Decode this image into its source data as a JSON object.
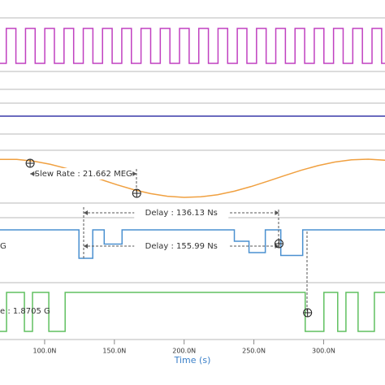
{
  "chart_data": {
    "type": "line",
    "xlabel": "Time (s)",
    "xlim": [
      68,
      344
    ],
    "xticks": [
      {
        "value": 100,
        "label": "100.0N"
      },
      {
        "value": 150,
        "label": "150.0N"
      },
      {
        "value": 200,
        "label": "200.0N"
      },
      {
        "value": 250,
        "label": "250.0N"
      },
      {
        "value": 300,
        "label": "300.0N"
      }
    ],
    "panels": [
      {
        "color": "#c040c0",
        "step": true,
        "ylim": [
          0,
          1
        ],
        "x": [
          68,
          72.5,
          79.4,
          86.3,
          93.2,
          100.1,
          107,
          113.9,
          120.8,
          127.7,
          134.6,
          141.5,
          148.4,
          155.3,
          162.2,
          169.1,
          176,
          182.9,
          189.8,
          196.7,
          203.6,
          210.5,
          217.4,
          224.3,
          231.2,
          238.1,
          245,
          251.9,
          258.8,
          265.7,
          272.6,
          279.5,
          286.4,
          293.3,
          300.2,
          307.1,
          314,
          320.9,
          327.8,
          334.7,
          341.6
        ],
        "values": [
          0,
          1,
          0,
          1,
          0,
          1,
          0,
          1,
          0,
          1,
          0,
          1,
          0,
          1,
          0,
          1,
          0,
          1,
          0,
          1,
          0,
          1,
          0,
          1,
          0,
          1,
          0,
          1,
          0,
          1,
          0,
          1,
          0,
          1,
          0,
          1,
          0,
          1,
          0,
          1,
          0
        ]
      },
      {
        "color": "#3a3aa8",
        "step": false,
        "ylim": [
          0,
          1
        ],
        "x": [
          68,
          344
        ],
        "values": [
          0,
          0
        ]
      },
      {
        "color": "#f0a040",
        "step": false,
        "ylim": [
          0,
          1
        ],
        "x": [
          68,
          80,
          92,
          104,
          116,
          128,
          140,
          152,
          164,
          176,
          188,
          200,
          212,
          224,
          236,
          248,
          260,
          272,
          284,
          296,
          308,
          320,
          332,
          344
        ],
        "values": [
          0.995,
          0.994,
          0.95,
          0.867,
          0.754,
          0.618,
          0.472,
          0.329,
          0.2,
          0.098,
          0.029,
          0.001,
          0.015,
          0.07,
          0.163,
          0.284,
          0.424,
          0.57,
          0.711,
          0.833,
          0.926,
          0.984,
          1.0,
          0.973
        ]
      },
      {
        "color": "#4a90d0",
        "step": true,
        "ylim": [
          0,
          1
        ],
        "x": [
          68,
          124.6,
          134.5,
          142.7,
          155.5,
          236,
          246.5,
          258.2,
          269.3,
          285
        ],
        "values": [
          1,
          0,
          1,
          0.5,
          1,
          0.6,
          0.2,
          1,
          0.1,
          1
        ]
      },
      {
        "color": "#60c060",
        "step": true,
        "ylim": [
          0,
          1
        ],
        "x": [
          68,
          72.7,
          85.5,
          91.3,
          103,
          114.7,
          286.8,
          300.2,
          310.1,
          316,
          324.7,
          336.4
        ],
        "values": [
          0,
          1,
          0,
          1,
          0,
          1,
          0,
          1,
          0,
          1,
          0,
          1
        ]
      }
    ],
    "annotations": [
      {
        "text": "Slew Rate : 21.662 MEG",
        "x": [
          89.6,
          166
        ]
      },
      {
        "text": "Delay : 136.13 Ns",
        "x": [
          128,
          268
        ]
      },
      {
        "text": "Delay : 155.99 Ns",
        "x": [
          128,
          268
        ]
      },
      {
        "text": "G"
      },
      {
        "text": "e : 1.8705 G"
      }
    ],
    "cursors": [
      89.6,
      166,
      268,
      288.5
    ]
  }
}
